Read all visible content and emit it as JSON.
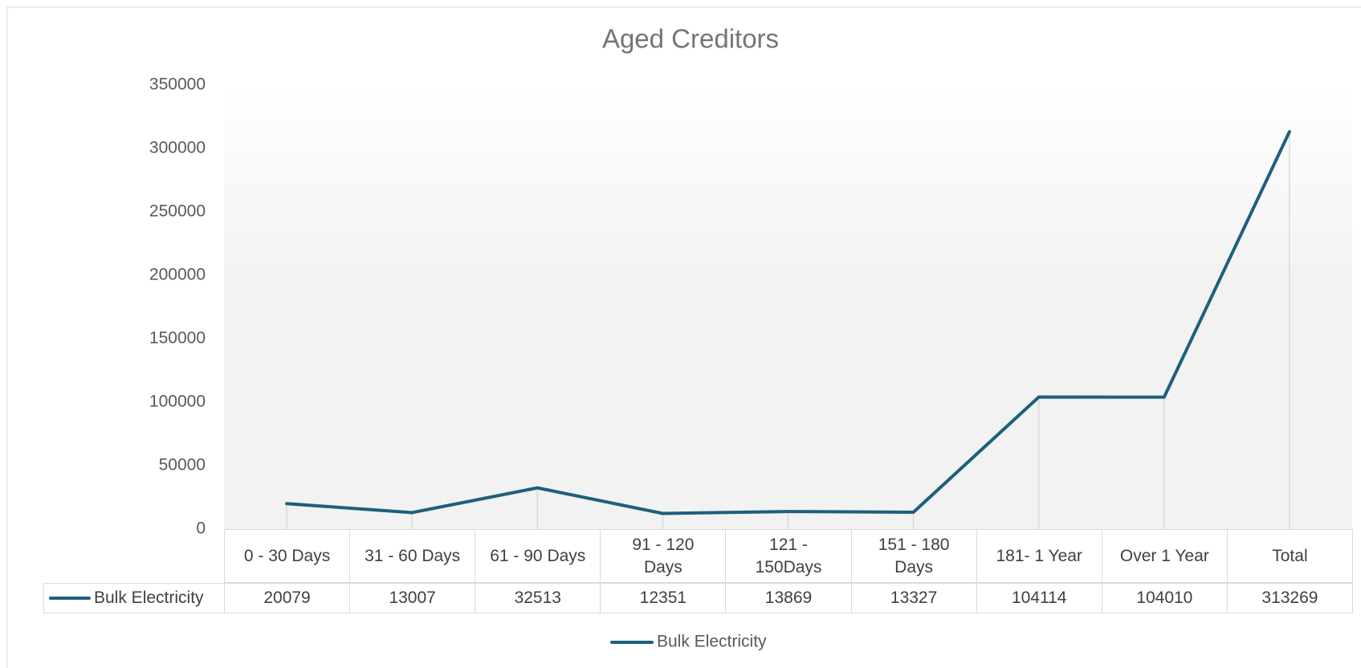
{
  "chart_data": {
    "type": "line",
    "title": "Aged Creditors",
    "categories": [
      "0 - 30 Days",
      "31 - 60 Days",
      "61 - 90 Days",
      "91 - 120 Days",
      "121 - 150Days",
      "151 - 180 Days",
      "181- 1 Year",
      "Over 1 Year",
      "Total"
    ],
    "series": [
      {
        "name": "Bulk Electricity",
        "color": "#1d5f7e",
        "values": [
          20079,
          13007,
          32513,
          12351,
          13869,
          13327,
          104114,
          104010,
          313269
        ]
      }
    ],
    "ylim": [
      0,
      350000
    ],
    "yticks": [
      0,
      50000,
      100000,
      150000,
      200000,
      250000,
      300000,
      350000
    ],
    "legend": "bottom",
    "data_table": true,
    "drop_lines": true
  }
}
